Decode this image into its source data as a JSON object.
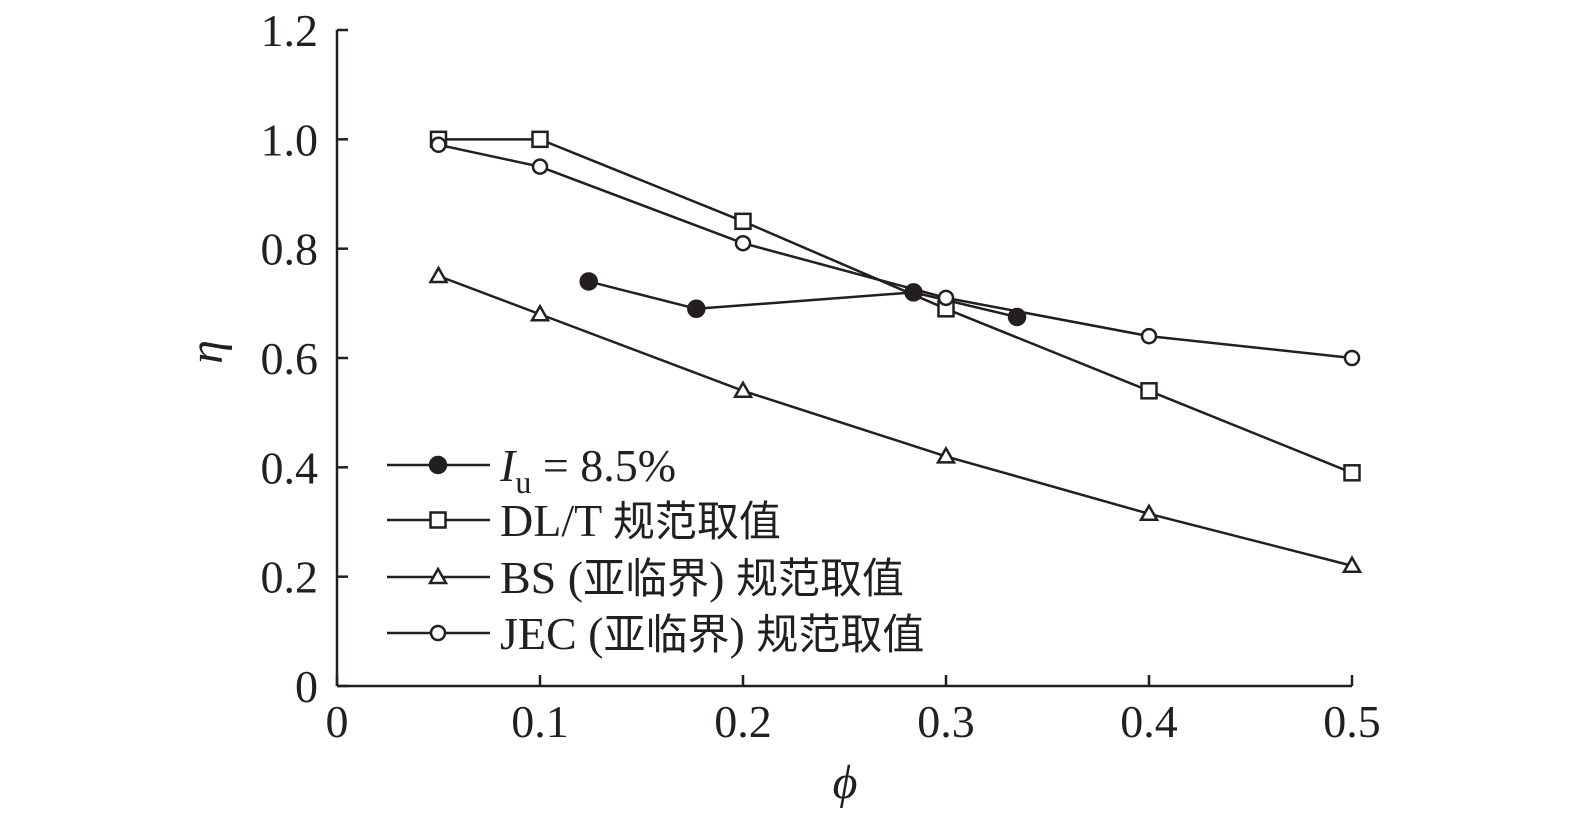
{
  "chart_data": {
    "type": "line",
    "xlabel": "ϕ",
    "ylabel": "η",
    "xlim": [
      0,
      0.5
    ],
    "ylim": [
      0,
      1.2
    ],
    "x_ticks": [
      "0",
      "0.1",
      "0.2",
      "0.3",
      "0.4",
      "0.5"
    ],
    "y_ticks": [
      "0",
      "0.2",
      "0.4",
      "0.6",
      "0.8",
      "1.0",
      "1.2"
    ],
    "legend_position": "bottom-left",
    "series": [
      {
        "name": "I_u = 8.5%",
        "name_parts": {
          "italic": "I",
          "sub": "u",
          "rest": " = 8.5%"
        },
        "marker": "filled-circle",
        "x": [
          0.124,
          0.177,
          0.284,
          0.335
        ],
        "y": [
          0.74,
          0.69,
          0.72,
          0.675
        ]
      },
      {
        "name": "DL/T 规范取值",
        "marker": "open-square",
        "x": [
          0.05,
          0.1,
          0.2,
          0.3,
          0.4,
          0.5
        ],
        "y": [
          1.0,
          1.0,
          0.85,
          0.69,
          0.54,
          0.39
        ]
      },
      {
        "name": "BS (亚临界) 规范取值",
        "marker": "open-triangle",
        "x": [
          0.05,
          0.1,
          0.2,
          0.3,
          0.4,
          0.5
        ],
        "y": [
          0.75,
          0.68,
          0.54,
          0.42,
          0.315,
          0.22
        ]
      },
      {
        "name": "JEC (亚临界) 规范取值",
        "marker": "open-circle",
        "x": [
          0.05,
          0.1,
          0.2,
          0.3,
          0.4,
          0.5
        ],
        "y": [
          0.99,
          0.95,
          0.81,
          0.71,
          0.64,
          0.6
        ]
      }
    ],
    "colors": {
      "line": "#231f20",
      "marker_fill": "#ffffff",
      "marker_solid": "#231f20"
    }
  }
}
